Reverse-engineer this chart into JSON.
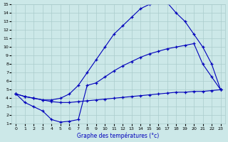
{
  "xlabel": "Graphe des températures (°c)",
  "background_color": "#cce8e8",
  "line_color": "#0000bb",
  "grid_color": "#aacccc",
  "xlim": [
    -0.5,
    23.5
  ],
  "ylim": [
    1,
    15
  ],
  "xticks": [
    0,
    1,
    2,
    3,
    4,
    5,
    6,
    7,
    8,
    9,
    10,
    11,
    12,
    13,
    14,
    15,
    16,
    17,
    18,
    19,
    20,
    21,
    22,
    23
  ],
  "yticks": [
    1,
    2,
    3,
    4,
    5,
    6,
    7,
    8,
    9,
    10,
    11,
    12,
    13,
    14,
    15
  ],
  "line_flat_x": [
    0,
    1,
    2,
    3,
    4,
    5,
    6,
    7,
    8,
    9,
    10,
    11,
    12,
    13,
    14,
    15,
    16,
    17,
    18,
    19,
    20,
    21,
    22,
    23
  ],
  "line_flat_y": [
    4.5,
    4.2,
    4.0,
    3.8,
    3.6,
    3.5,
    3.5,
    3.6,
    3.7,
    3.8,
    3.9,
    4.0,
    4.1,
    4.2,
    4.3,
    4.4,
    4.5,
    4.6,
    4.7,
    4.7,
    4.8,
    4.8,
    4.9,
    5.0
  ],
  "line_mid_x": [
    0,
    1,
    2,
    3,
    4,
    5,
    6,
    7,
    8,
    9,
    10,
    11,
    12,
    13,
    14,
    15,
    16,
    17,
    18,
    19,
    20,
    21,
    22,
    23
  ],
  "line_mid_y": [
    4.5,
    3.5,
    3.0,
    2.5,
    1.5,
    1.2,
    1.3,
    1.5,
    5.5,
    5.8,
    6.5,
    7.2,
    7.8,
    8.3,
    8.8,
    9.2,
    9.5,
    9.8,
    10.0,
    10.2,
    10.4,
    8.0,
    6.5,
    5.0
  ],
  "line_top_x": [
    0,
    1,
    2,
    3,
    4,
    5,
    6,
    7,
    8,
    9,
    10,
    11,
    12,
    13,
    14,
    15,
    16,
    17,
    18,
    19,
    20,
    21,
    22,
    23
  ],
  "line_top_y": [
    4.5,
    4.2,
    4.0,
    3.8,
    3.8,
    4.0,
    4.5,
    5.5,
    7.0,
    8.5,
    10.0,
    11.5,
    12.5,
    13.5,
    14.5,
    15.0,
    15.2,
    15.2,
    14.0,
    13.0,
    11.5,
    10.0,
    8.0,
    5.0
  ]
}
